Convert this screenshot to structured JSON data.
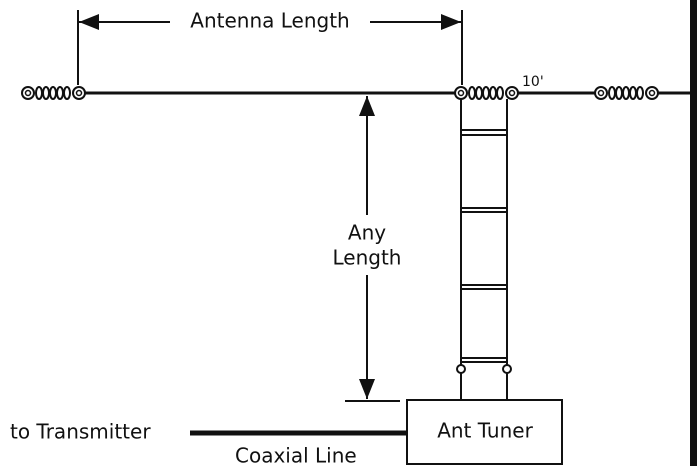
{
  "labels": {
    "antenna_length": "Antenna Length",
    "spacing": "10'",
    "any_length_line1": "Any",
    "any_length_line2": "Length",
    "tuner": "Ant Tuner",
    "transmitter": "to Transmitter",
    "coax": "Coaxial Line"
  }
}
